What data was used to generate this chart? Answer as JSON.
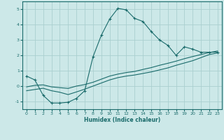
{
  "xlabel": "Humidex (Indice chaleur)",
  "ylabel": "",
  "bg_color": "#cce8e8",
  "grid_color": "#aacfcf",
  "line_color": "#1a6b6b",
  "xlim": [
    -0.5,
    23.5
  ],
  "ylim": [
    -1.5,
    5.5
  ],
  "xticks": [
    0,
    1,
    2,
    3,
    4,
    5,
    6,
    7,
    8,
    9,
    10,
    11,
    12,
    13,
    14,
    15,
    16,
    17,
    18,
    19,
    20,
    21,
    22,
    23
  ],
  "yticks": [
    -1,
    0,
    1,
    2,
    3,
    4,
    5
  ],
  "line1_x": [
    0,
    1,
    2,
    3,
    4,
    5,
    6,
    7,
    8,
    9,
    10,
    11,
    12,
    13,
    14,
    15,
    16,
    17,
    18,
    19,
    20,
    21,
    22,
    23
  ],
  "line1_y": [
    0.65,
    0.4,
    -0.6,
    -1.1,
    -1.1,
    -1.05,
    -0.8,
    -0.3,
    1.9,
    3.3,
    4.35,
    5.05,
    4.95,
    4.4,
    4.2,
    3.55,
    3.0,
    2.65,
    2.0,
    2.55,
    2.4,
    2.2,
    2.2,
    2.2
  ],
  "line2_x": [
    0,
    1,
    2,
    3,
    4,
    5,
    6,
    7,
    8,
    9,
    10,
    11,
    12,
    13,
    14,
    15,
    16,
    17,
    18,
    19,
    20,
    21,
    22,
    23
  ],
  "line2_y": [
    -0.3,
    -0.22,
    -0.14,
    -0.3,
    -0.4,
    -0.55,
    -0.38,
    -0.2,
    0.0,
    0.2,
    0.4,
    0.55,
    0.65,
    0.72,
    0.82,
    0.92,
    1.05,
    1.18,
    1.35,
    1.5,
    1.65,
    1.85,
    2.05,
    2.15
  ],
  "line3_x": [
    0,
    1,
    2,
    3,
    4,
    5,
    6,
    7,
    8,
    9,
    10,
    11,
    12,
    13,
    14,
    15,
    16,
    17,
    18,
    19,
    20,
    21,
    22,
    23
  ],
  "line3_y": [
    -0.05,
    0.05,
    0.08,
    -0.05,
    -0.1,
    -0.15,
    0.0,
    0.1,
    0.25,
    0.45,
    0.65,
    0.78,
    0.88,
    0.95,
    1.08,
    1.2,
    1.35,
    1.48,
    1.62,
    1.78,
    1.92,
    2.05,
    2.18,
    2.28
  ]
}
